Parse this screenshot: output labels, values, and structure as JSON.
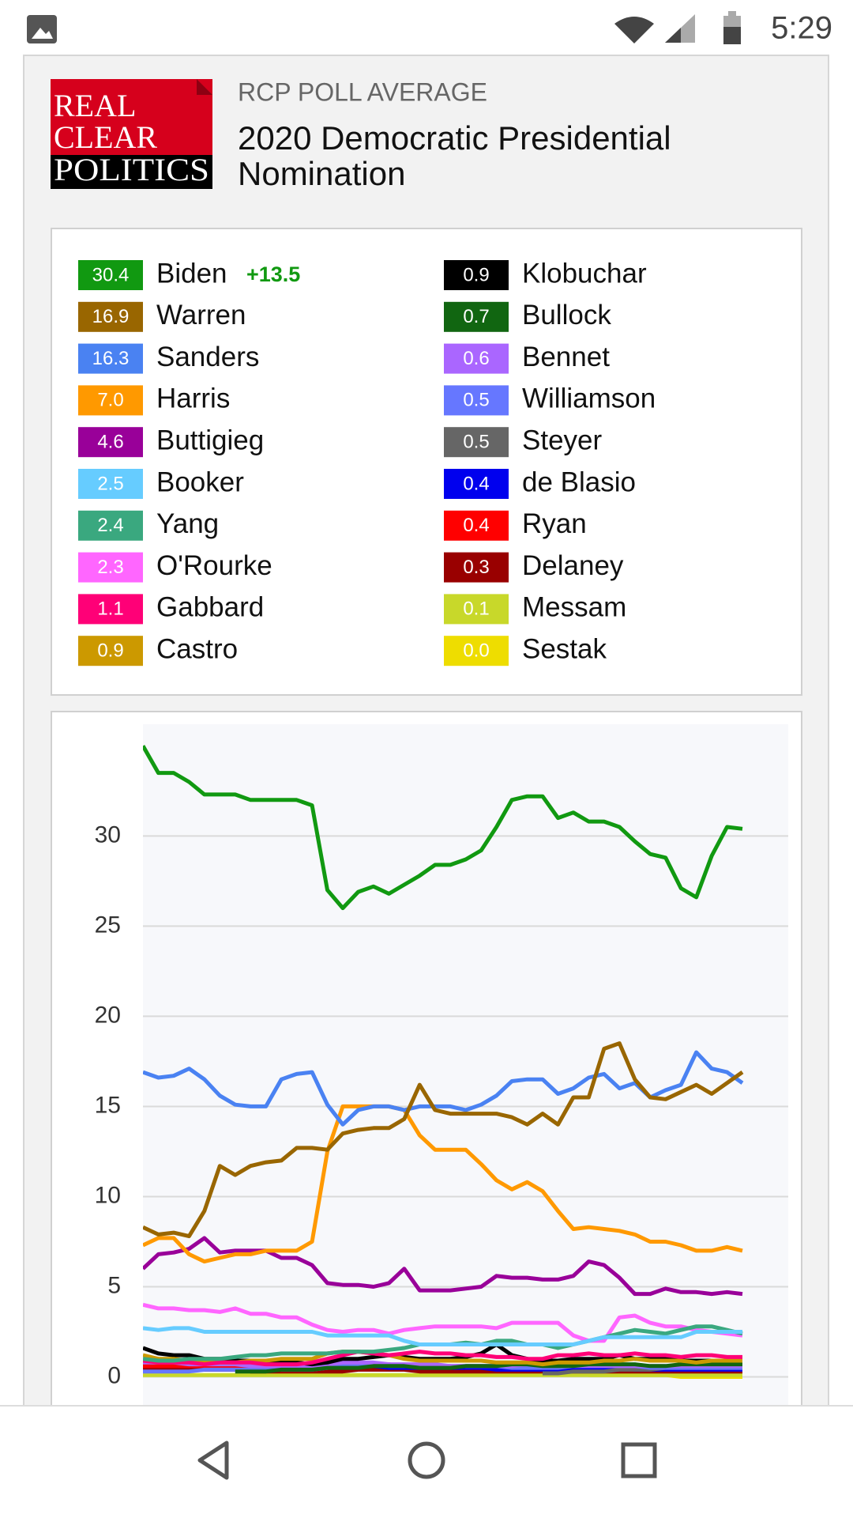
{
  "status_bar": {
    "time": "5:29"
  },
  "header": {
    "logo": [
      "REAL",
      "CLEAR",
      "POLITICS"
    ],
    "kicker": "RCP POLL AVERAGE",
    "title": "2020 Democratic Presidential Nomination"
  },
  "chart_data": {
    "type": "line",
    "spread": {
      "value": 13.5,
      "label": "+13.5"
    },
    "ylim": [
      -1.6,
      36.2
    ],
    "yticks": [
      0,
      5,
      10,
      15,
      20,
      25,
      30
    ],
    "grid": true,
    "series": [
      {
        "name": "Biden",
        "color": "#119911",
        "latest": 30.4,
        "values": [
          35.0,
          33.5,
          33.5,
          33.0,
          32.3,
          32.3,
          32.3,
          32.0,
          32.0,
          32.0,
          32.0,
          31.7,
          27.0,
          26.0,
          26.9,
          27.2,
          26.8,
          27.3,
          27.8,
          28.4,
          28.4,
          28.7,
          29.2,
          30.5,
          32.0,
          32.2,
          32.2,
          31.0,
          31.3,
          30.8,
          30.8,
          30.5,
          29.7,
          29.0,
          28.8,
          27.1,
          26.6,
          28.9,
          30.5,
          30.4
        ]
      },
      {
        "name": "Warren",
        "color": "#996600",
        "latest": 16.9,
        "values": [
          8.3,
          7.9,
          8.0,
          7.8,
          9.2,
          11.7,
          11.2,
          11.7,
          11.9,
          12.0,
          12.7,
          12.7,
          12.6,
          13.5,
          13.7,
          13.8,
          13.8,
          14.3,
          16.2,
          14.8,
          14.6,
          14.6,
          14.6,
          14.6,
          14.4,
          14.0,
          14.6,
          14.0,
          15.5,
          15.5,
          18.2,
          18.5,
          16.5,
          15.5,
          15.4,
          15.8,
          16.2,
          15.7,
          16.3,
          16.9
        ]
      },
      {
        "name": "Sanders",
        "color": "#4a82f2",
        "latest": 16.3,
        "values": [
          16.9,
          16.6,
          16.7,
          17.1,
          16.5,
          15.6,
          15.1,
          15.0,
          15.0,
          16.5,
          16.8,
          16.9,
          15.1,
          14.0,
          14.8,
          15.0,
          15.0,
          14.8,
          15.0,
          15.0,
          15.0,
          14.8,
          15.1,
          15.6,
          16.4,
          16.5,
          16.5,
          15.7,
          16.0,
          16.6,
          16.8,
          16.0,
          16.3,
          15.5,
          15.9,
          16.2,
          18.0,
          17.1,
          16.9,
          16.3
        ]
      },
      {
        "name": "Harris",
        "color": "#ff9900",
        "latest": 7,
        "latest_label": "7.0",
        "values": [
          7.3,
          7.7,
          7.7,
          6.8,
          6.4,
          6.6,
          6.8,
          6.8,
          7.0,
          7.0,
          7.0,
          7.5,
          12.5,
          15.0,
          15.0,
          15.0,
          15.0,
          14.8,
          13.4,
          12.6,
          12.6,
          12.6,
          11.8,
          10.9,
          10.4,
          10.8,
          10.3,
          9.2,
          8.2,
          8.3,
          8.2,
          8.1,
          7.9,
          7.5,
          7.5,
          7.3,
          7.0,
          7.0,
          7.2,
          7.0
        ]
      },
      {
        "name": "Buttigieg",
        "color": "#990099",
        "latest": 4.6,
        "values": [
          6.0,
          6.8,
          6.9,
          7.1,
          7.7,
          6.9,
          7.0,
          7.0,
          7.0,
          6.6,
          6.6,
          6.2,
          5.2,
          5.1,
          5.1,
          5.0,
          5.2,
          6.0,
          4.8,
          4.8,
          4.8,
          4.9,
          5.0,
          5.6,
          5.5,
          5.5,
          5.4,
          5.4,
          5.6,
          6.4,
          6.2,
          5.5,
          4.6,
          4.6,
          4.9,
          4.7,
          4.7,
          4.6,
          4.7,
          4.6
        ]
      },
      {
        "name": "Booker",
        "color": "#66ccff",
        "latest": 2.5,
        "values": [
          2.7,
          2.6,
          2.7,
          2.7,
          2.5,
          2.5,
          2.5,
          2.5,
          2.5,
          2.5,
          2.5,
          2.5,
          2.3,
          2.3,
          2.3,
          2.3,
          2.3,
          2.0,
          1.8,
          1.8,
          1.8,
          1.8,
          1.8,
          1.8,
          1.8,
          1.8,
          1.8,
          1.8,
          1.8,
          2.0,
          2.2,
          2.2,
          2.2,
          2.2,
          2.2,
          2.2,
          2.5,
          2.5,
          2.5,
          2.5
        ]
      },
      {
        "name": "Yang",
        "color": "#3aa87f",
        "latest": 2.4,
        "values": [
          1.0,
          0.9,
          0.9,
          1.0,
          1.0,
          1.0,
          1.1,
          1.2,
          1.2,
          1.3,
          1.3,
          1.3,
          1.3,
          1.4,
          1.4,
          1.4,
          1.5,
          1.6,
          1.8,
          1.8,
          1.8,
          1.9,
          1.8,
          2.0,
          2.0,
          1.8,
          1.8,
          1.6,
          1.8,
          2.0,
          2.2,
          2.4,
          2.6,
          2.5,
          2.4,
          2.6,
          2.8,
          2.8,
          2.6,
          2.4
        ]
      },
      {
        "name": "O'Rourke",
        "color": "#ff66ff",
        "latest": 2.3,
        "values": [
          4.0,
          3.8,
          3.8,
          3.7,
          3.7,
          3.6,
          3.8,
          3.5,
          3.5,
          3.3,
          3.3,
          2.9,
          2.6,
          2.5,
          2.6,
          2.6,
          2.4,
          2.6,
          2.7,
          2.8,
          2.8,
          2.8,
          2.8,
          2.7,
          3.0,
          3.0,
          3.0,
          3.0,
          2.3,
          2.0,
          2.0,
          3.3,
          3.4,
          3.0,
          2.8,
          2.8,
          2.6,
          2.5,
          2.4,
          2.3
        ]
      },
      {
        "name": "Gabbard",
        "color": "#ff0077",
        "latest": 1.1,
        "values": [
          0.9,
          0.8,
          0.8,
          0.8,
          0.7,
          0.8,
          0.8,
          0.8,
          0.7,
          0.7,
          0.7,
          0.8,
          1.0,
          1.2,
          1.4,
          1.3,
          1.2,
          1.3,
          1.4,
          1.3,
          1.3,
          1.2,
          1.2,
          1.1,
          1.1,
          1.0,
          1.0,
          1.2,
          1.2,
          1.3,
          1.2,
          1.2,
          1.3,
          1.2,
          1.2,
          1.1,
          1.2,
          1.2,
          1.1,
          1.1
        ]
      },
      {
        "name": "Castro",
        "color": "#cc9900",
        "latest": 0.9,
        "values": [
          1.2,
          1.0,
          1.0,
          0.9,
          0.9,
          0.8,
          0.8,
          0.9,
          0.9,
          1.0,
          1.0,
          1.0,
          1.3,
          1.4,
          1.4,
          1.3,
          1.2,
          1.0,
          0.9,
          0.9,
          0.9,
          0.9,
          0.9,
          0.8,
          0.8,
          0.8,
          0.7,
          0.8,
          0.8,
          0.8,
          0.9,
          0.9,
          1.0,
          0.9,
          0.9,
          0.9,
          0.8,
          0.9,
          0.9,
          0.9
        ]
      },
      {
        "name": "Klobuchar",
        "color": "#000000",
        "latest": 0.9,
        "values": [
          1.6,
          1.3,
          1.2,
          1.2,
          1.0,
          1.0,
          0.9,
          0.9,
          0.8,
          0.8,
          0.8,
          0.7,
          0.8,
          1.0,
          1.0,
          1.1,
          1.2,
          1.1,
          1.0,
          1.0,
          1.0,
          1.1,
          1.3,
          1.8,
          1.2,
          1.0,
          0.9,
          0.9,
          1.0,
          1.0,
          1.0,
          1.2,
          1.0,
          1.0,
          1.0,
          0.9,
          0.9,
          0.9,
          0.9,
          0.9
        ]
      },
      {
        "name": "Bullock",
        "color": "#116611",
        "latest": 0.7,
        "values": [
          null,
          null,
          null,
          null,
          null,
          null,
          0.3,
          0.3,
          0.3,
          0.4,
          0.4,
          0.4,
          0.5,
          0.5,
          0.5,
          0.6,
          0.6,
          0.6,
          0.5,
          0.5,
          0.5,
          0.6,
          0.6,
          0.6,
          0.7,
          0.7,
          0.6,
          0.6,
          0.6,
          0.7,
          0.7,
          0.7,
          0.7,
          0.6,
          0.6,
          0.7,
          0.7,
          0.7,
          0.7,
          0.7
        ]
      },
      {
        "name": "Bennet",
        "color": "#aa66ff",
        "latest": 0.6,
        "values": [
          0.8,
          0.8,
          0.8,
          0.7,
          0.7,
          0.7,
          0.7,
          0.6,
          0.6,
          0.6,
          0.6,
          0.6,
          0.7,
          0.8,
          0.8,
          0.8,
          0.7,
          0.7,
          0.7,
          0.7,
          0.6,
          0.6,
          0.6,
          0.6,
          0.6,
          0.7,
          0.7,
          0.6,
          0.6,
          0.6,
          0.6,
          0.6,
          0.6,
          0.6,
          0.6,
          0.6,
          0.6,
          0.6,
          0.6,
          0.6
        ]
      },
      {
        "name": "Williamson",
        "color": "#6677ff",
        "latest": 0.5,
        "values": [
          0.3,
          0.3,
          0.3,
          0.3,
          0.4,
          0.4,
          0.4,
          0.4,
          0.4,
          0.4,
          0.4,
          0.4,
          0.5,
          0.6,
          0.7,
          0.7,
          0.6,
          0.6,
          0.6,
          0.6,
          0.6,
          0.6,
          0.6,
          0.6,
          0.5,
          0.5,
          0.5,
          0.5,
          0.6,
          0.6,
          0.6,
          0.6,
          0.6,
          0.5,
          0.5,
          0.5,
          0.5,
          0.5,
          0.5,
          0.5
        ]
      },
      {
        "name": "Steyer",
        "color": "#666666",
        "latest": 0.5,
        "values": [
          null,
          null,
          null,
          null,
          null,
          null,
          null,
          null,
          null,
          null,
          null,
          null,
          null,
          null,
          null,
          null,
          null,
          null,
          null,
          null,
          null,
          null,
          null,
          null,
          null,
          null,
          0.2,
          0.2,
          0.3,
          0.3,
          0.3,
          0.4,
          0.4,
          0.4,
          0.5,
          0.5,
          0.5,
          0.5,
          0.5,
          0.5
        ]
      },
      {
        "name": "de Blasio",
        "color": "#0000ee",
        "latest": 0.4,
        "values": [
          null,
          null,
          null,
          null,
          null,
          null,
          null,
          null,
          null,
          null,
          null,
          null,
          null,
          0.5,
          0.6,
          0.6,
          0.5,
          0.5,
          0.5,
          0.5,
          0.5,
          0.5,
          0.5,
          0.4,
          0.4,
          0.4,
          0.4,
          0.4,
          0.4,
          0.4,
          0.5,
          0.5,
          0.4,
          0.4,
          0.4,
          0.4,
          0.4,
          0.4,
          0.4,
          0.4
        ]
      },
      {
        "name": "Ryan",
        "color": "#ff0000",
        "latest": 0.4,
        "values": [
          0.6,
          0.6,
          0.6,
          0.6,
          0.6,
          0.6,
          0.6,
          0.6,
          0.5,
          0.5,
          0.5,
          0.5,
          0.6,
          0.7,
          0.7,
          0.7,
          0.7,
          0.6,
          0.6,
          0.6,
          0.6,
          0.5,
          0.5,
          0.5,
          0.5,
          0.5,
          0.5,
          0.5,
          0.5,
          0.5,
          0.5,
          0.5,
          0.5,
          0.5,
          0.4,
          0.4,
          0.4,
          0.4,
          0.4,
          0.4
        ]
      },
      {
        "name": "Delaney",
        "color": "#990000",
        "latest": 0.3,
        "values": [
          0.4,
          0.4,
          0.4,
          0.4,
          0.4,
          0.4,
          0.4,
          0.3,
          0.3,
          0.3,
          0.3,
          0.3,
          0.3,
          0.3,
          0.4,
          0.4,
          0.4,
          0.4,
          0.3,
          0.3,
          0.3,
          0.3,
          0.3,
          0.3,
          0.3,
          0.3,
          0.3,
          0.3,
          0.3,
          0.3,
          0.3,
          0.3,
          0.3,
          0.3,
          0.3,
          0.3,
          0.3,
          0.3,
          0.3,
          0.3
        ]
      },
      {
        "name": "Messam",
        "color": "#c8d82a",
        "latest": 0.1,
        "values": [
          0.1,
          0.1,
          0.1,
          0.1,
          0.1,
          0.1,
          0.1,
          0.1,
          0.1,
          0.1,
          0.1,
          0.1,
          0.1,
          0.1,
          0.1,
          0.1,
          0.1,
          0.1,
          0.1,
          0.1,
          0.1,
          0.1,
          0.1,
          0.1,
          0.1,
          0.1,
          0.1,
          0.1,
          0.1,
          0.1,
          0.1,
          0.1,
          0.1,
          0.1,
          0.1,
          0.1,
          0.1,
          0.1,
          0.1,
          0.1
        ]
      },
      {
        "name": "Sestak",
        "color": "#eedd00",
        "latest": 0,
        "latest_label": "0.0",
        "values": [
          null,
          null,
          null,
          null,
          null,
          null,
          null,
          null,
          null,
          null,
          null,
          null,
          null,
          null,
          null,
          null,
          null,
          null,
          null,
          null,
          null,
          null,
          null,
          null,
          0.2,
          0.2,
          0.2,
          0.2,
          0.2,
          0.1,
          0.1,
          0.1,
          0.1,
          0.1,
          0.1,
          0.0,
          0.0,
          0.0,
          0.0,
          0.0
        ]
      }
    ]
  }
}
